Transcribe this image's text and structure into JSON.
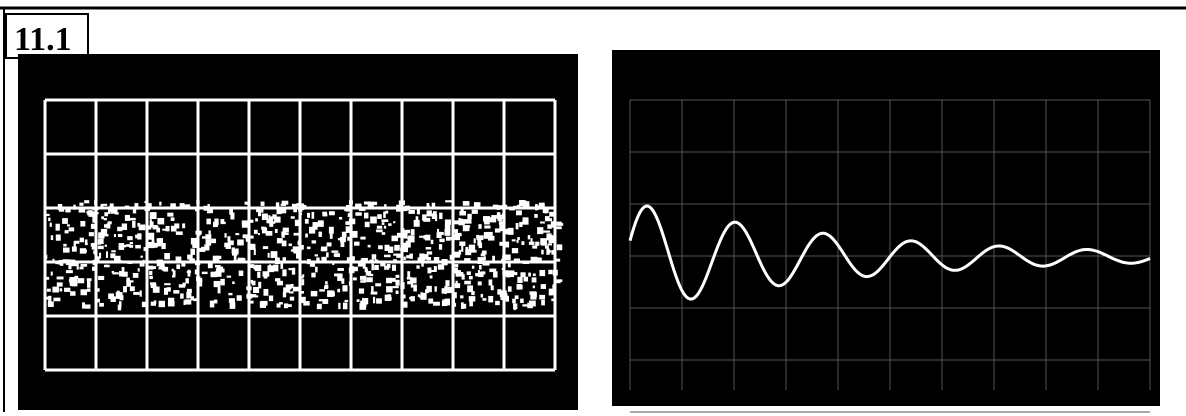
{
  "figure": {
    "label": "11.1"
  }
}
